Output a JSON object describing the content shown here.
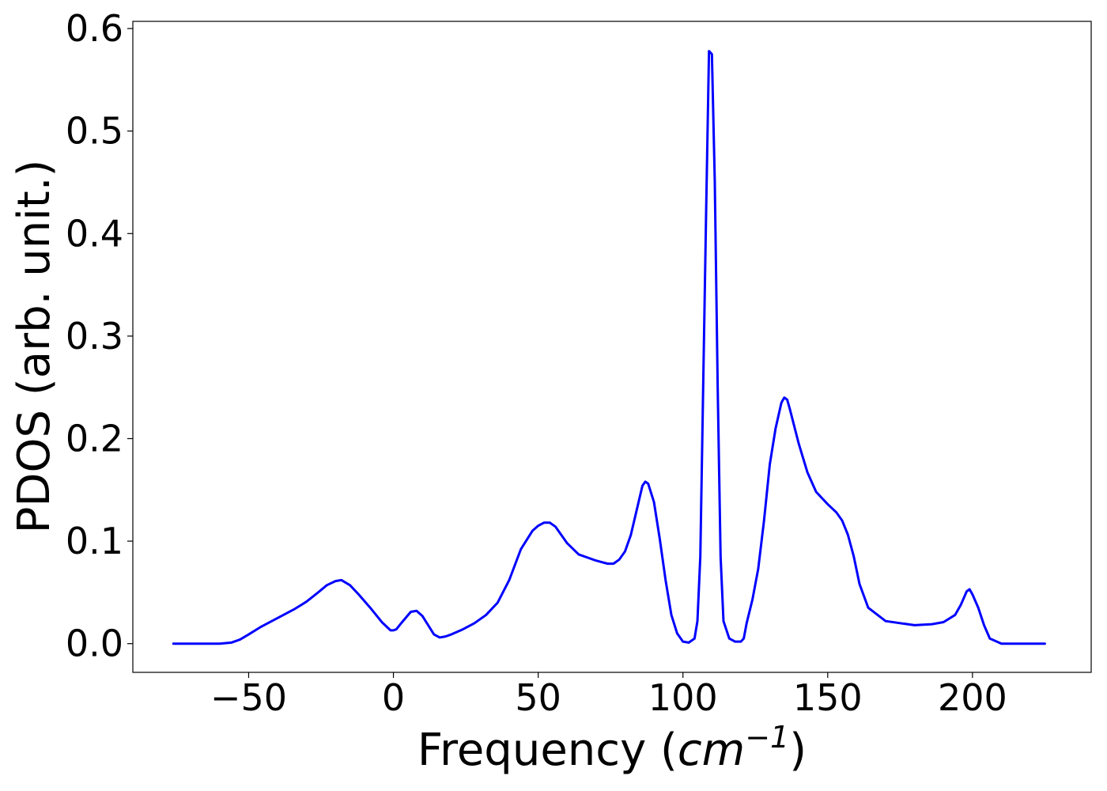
{
  "chart_data": {
    "type": "line",
    "title": "",
    "xlabel_prefix": "Frequency (",
    "xlabel_math": "cm",
    "xlabel_exp": "−1",
    "xlabel_suffix": ")",
    "ylabel": "PDOS (arb. unit.)",
    "xlim": [
      -90,
      241
    ],
    "ylim": [
      -0.028,
      0.607
    ],
    "xticks": [
      -50,
      0,
      50,
      100,
      150,
      200
    ],
    "xtick_labels": [
      "−50",
      "0",
      "50",
      "100",
      "150",
      "200"
    ],
    "yticks": [
      0.0,
      0.1,
      0.2,
      0.3,
      0.4,
      0.5,
      0.6
    ],
    "ytick_labels": [
      "0.0",
      "0.1",
      "0.2",
      "0.3",
      "0.4",
      "0.5",
      "0.6"
    ],
    "grid": false,
    "line_color": "#0000ff",
    "series": [
      {
        "x": [
          -76,
          -70,
          -60,
          -56,
          -53,
          -50,
          -46,
          -42,
          -38,
          -34,
          -30,
          -26,
          -23,
          -20,
          -18,
          -15,
          -12,
          -8,
          -4,
          -1,
          0,
          1,
          3,
          6,
          8,
          10,
          12,
          14,
          16,
          18,
          20,
          24,
          28,
          32,
          36,
          40,
          44,
          48,
          50,
          52,
          54,
          56,
          60,
          64,
          70,
          74,
          76,
          78,
          80,
          82,
          84,
          86,
          87,
          88,
          90,
          92,
          94,
          96,
          98,
          100,
          102,
          104,
          105,
          106,
          108,
          109,
          110,
          111,
          112,
          113,
          114,
          116,
          118,
          120,
          121,
          122,
          124,
          126,
          128,
          130,
          132,
          134,
          135,
          136,
          137,
          140,
          143,
          146,
          150,
          153,
          155,
          157,
          159,
          161,
          164,
          170,
          180,
          186,
          190,
          194,
          196,
          198,
          199,
          200,
          202,
          204,
          206,
          210,
          225
        ],
        "y": [
          0.0,
          0.0,
          0.0,
          0.001,
          0.004,
          0.009,
          0.016,
          0.022,
          0.028,
          0.034,
          0.041,
          0.05,
          0.057,
          0.061,
          0.062,
          0.057,
          0.048,
          0.035,
          0.021,
          0.013,
          0.013,
          0.014,
          0.021,
          0.031,
          0.032,
          0.027,
          0.018,
          0.009,
          0.006,
          0.007,
          0.009,
          0.014,
          0.02,
          0.028,
          0.04,
          0.062,
          0.092,
          0.11,
          0.115,
          0.118,
          0.118,
          0.114,
          0.098,
          0.087,
          0.081,
          0.078,
          0.078,
          0.082,
          0.09,
          0.106,
          0.13,
          0.154,
          0.158,
          0.156,
          0.138,
          0.102,
          0.062,
          0.028,
          0.01,
          0.002,
          0.001,
          0.005,
          0.022,
          0.085,
          0.42,
          0.578,
          0.575,
          0.45,
          0.25,
          0.085,
          0.022,
          0.005,
          0.002,
          0.002,
          0.005,
          0.02,
          0.043,
          0.073,
          0.12,
          0.175,
          0.21,
          0.235,
          0.24,
          0.238,
          0.228,
          0.195,
          0.167,
          0.148,
          0.136,
          0.128,
          0.12,
          0.106,
          0.085,
          0.058,
          0.035,
          0.022,
          0.018,
          0.019,
          0.021,
          0.028,
          0.038,
          0.051,
          0.053,
          0.048,
          0.035,
          0.018,
          0.005,
          0.0,
          0.0
        ]
      }
    ]
  }
}
